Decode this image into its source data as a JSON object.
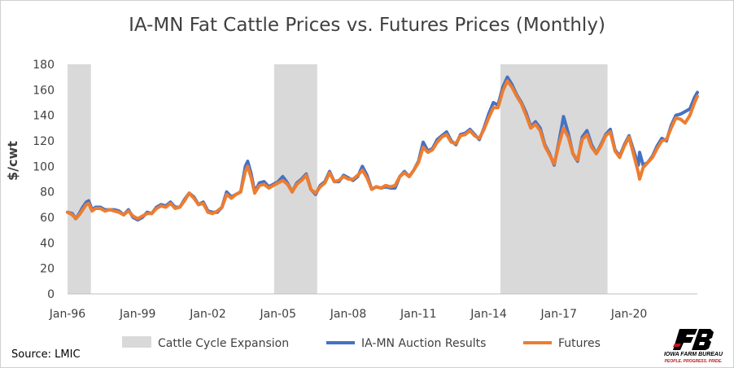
{
  "chart_data": {
    "type": "line",
    "title": "IA-MN Fat Cattle Prices vs. Futures Prices (Monthly)",
    "ylabel": "$/cwt",
    "xlabel": "",
    "ylim": [
      0,
      180
    ],
    "yticks": [
      0,
      20,
      40,
      60,
      80,
      100,
      120,
      140,
      160,
      180
    ],
    "xlim": [
      1996.0,
      2022.92
    ],
    "xticks": [
      {
        "x": 1996,
        "label": "Jan-96"
      },
      {
        "x": 1999,
        "label": "Jan-99"
      },
      {
        "x": 2002,
        "label": "Jan-02"
      },
      {
        "x": 2005,
        "label": "Jan-05"
      },
      {
        "x": 2008,
        "label": "Jan-08"
      },
      {
        "x": 2011,
        "label": "Jan-11"
      },
      {
        "x": 2014,
        "label": "Jan-14"
      },
      {
        "x": 2017,
        "label": "Jan-17"
      },
      {
        "x": 2020,
        "label": "Jan-20"
      }
    ],
    "grid": false,
    "legend_position": "bottom",
    "shaded_regions": [
      {
        "start": 1996.0,
        "end": 1997.0
      },
      {
        "start": 2004.83,
        "end": 2006.67
      },
      {
        "start": 2014.5,
        "end": 2019.08
      }
    ],
    "shade_name": "Cattle Cycle Expansion",
    "series": [
      {
        "name": "IA-MN Auction Results",
        "color": "#4472c4",
        "points": [
          [
            1996.0,
            64
          ],
          [
            1996.2,
            63
          ],
          [
            1996.35,
            59
          ],
          [
            1996.5,
            63
          ],
          [
            1996.65,
            68
          ],
          [
            1996.8,
            72
          ],
          [
            1996.9,
            73
          ],
          [
            1997.05,
            66
          ],
          [
            1997.2,
            68
          ],
          [
            1997.4,
            68
          ],
          [
            1997.6,
            66
          ],
          [
            1997.8,
            66
          ],
          [
            1998.0,
            66
          ],
          [
            1998.2,
            65
          ],
          [
            1998.4,
            62
          ],
          [
            1998.6,
            66
          ],
          [
            1998.8,
            60
          ],
          [
            1999.0,
            58
          ],
          [
            1999.2,
            60
          ],
          [
            1999.4,
            64
          ],
          [
            1999.6,
            63
          ],
          [
            1999.8,
            68
          ],
          [
            2000.0,
            70
          ],
          [
            2000.2,
            69
          ],
          [
            2000.4,
            72
          ],
          [
            2000.6,
            68
          ],
          [
            2000.8,
            68
          ],
          [
            2001.0,
            74
          ],
          [
            2001.2,
            79
          ],
          [
            2001.4,
            76
          ],
          [
            2001.6,
            70
          ],
          [
            2001.8,
            72
          ],
          [
            2002.0,
            65
          ],
          [
            2002.2,
            64
          ],
          [
            2002.4,
            64
          ],
          [
            2002.6,
            68
          ],
          [
            2002.8,
            80
          ],
          [
            2003.0,
            76
          ],
          [
            2003.2,
            78
          ],
          [
            2003.4,
            80
          ],
          [
            2003.6,
            100
          ],
          [
            2003.7,
            104
          ],
          [
            2003.85,
            94
          ],
          [
            2004.0,
            80
          ],
          [
            2004.2,
            87
          ],
          [
            2004.4,
            88
          ],
          [
            2004.6,
            84
          ],
          [
            2004.8,
            86
          ],
          [
            2005.0,
            88
          ],
          [
            2005.2,
            92
          ],
          [
            2005.4,
            87
          ],
          [
            2005.6,
            80
          ],
          [
            2005.8,
            87
          ],
          [
            2006.0,
            90
          ],
          [
            2006.2,
            94
          ],
          [
            2006.4,
            82
          ],
          [
            2006.6,
            78
          ],
          [
            2006.8,
            85
          ],
          [
            2007.0,
            88
          ],
          [
            2007.2,
            96
          ],
          [
            2007.4,
            88
          ],
          [
            2007.6,
            88
          ],
          [
            2007.8,
            93
          ],
          [
            2008.0,
            91
          ],
          [
            2008.2,
            89
          ],
          [
            2008.4,
            92
          ],
          [
            2008.6,
            100
          ],
          [
            2008.8,
            93
          ],
          [
            2009.0,
            82
          ],
          [
            2009.2,
            84
          ],
          [
            2009.4,
            83
          ],
          [
            2009.6,
            84
          ],
          [
            2009.8,
            83
          ],
          [
            2010.0,
            83
          ],
          [
            2010.2,
            92
          ],
          [
            2010.4,
            96
          ],
          [
            2010.6,
            92
          ],
          [
            2010.8,
            97
          ],
          [
            2011.0,
            104
          ],
          [
            2011.2,
            119
          ],
          [
            2011.4,
            112
          ],
          [
            2011.6,
            114
          ],
          [
            2011.8,
            121
          ],
          [
            2012.0,
            124
          ],
          [
            2012.2,
            127
          ],
          [
            2012.4,
            120
          ],
          [
            2012.6,
            117
          ],
          [
            2012.8,
            125
          ],
          [
            2013.0,
            126
          ],
          [
            2013.2,
            129
          ],
          [
            2013.4,
            125
          ],
          [
            2013.6,
            121
          ],
          [
            2013.8,
            130
          ],
          [
            2014.0,
            141
          ],
          [
            2014.2,
            150
          ],
          [
            2014.4,
            148
          ],
          [
            2014.6,
            162
          ],
          [
            2014.8,
            170
          ],
          [
            2015.0,
            164
          ],
          [
            2015.2,
            156
          ],
          [
            2015.4,
            150
          ],
          [
            2015.6,
            142
          ],
          [
            2015.8,
            131
          ],
          [
            2016.0,
            135
          ],
          [
            2016.2,
            130
          ],
          [
            2016.4,
            117
          ],
          [
            2016.6,
            110
          ],
          [
            2016.8,
            101
          ],
          [
            2017.0,
            119
          ],
          [
            2017.2,
            139
          ],
          [
            2017.4,
            126
          ],
          [
            2017.6,
            110
          ],
          [
            2017.8,
            104
          ],
          [
            2018.0,
            123
          ],
          [
            2018.2,
            128
          ],
          [
            2018.4,
            117
          ],
          [
            2018.6,
            110
          ],
          [
            2018.8,
            117
          ],
          [
            2019.0,
            125
          ],
          [
            2019.2,
            129
          ],
          [
            2019.4,
            113
          ],
          [
            2019.6,
            108
          ],
          [
            2019.8,
            117
          ],
          [
            2020.0,
            124
          ],
          [
            2020.2,
            112
          ],
          [
            2020.4,
            101
          ],
          [
            2020.45,
            111
          ],
          [
            2020.6,
            101
          ],
          [
            2020.8,
            103
          ],
          [
            2021.0,
            108
          ],
          [
            2021.2,
            116
          ],
          [
            2021.4,
            122
          ],
          [
            2021.6,
            120
          ],
          [
            2021.8,
            132
          ],
          [
            2022.0,
            140
          ],
          [
            2022.2,
            141
          ],
          [
            2022.4,
            143
          ],
          [
            2022.6,
            145
          ],
          [
            2022.8,
            154
          ],
          [
            2022.92,
            158
          ]
        ]
      },
      {
        "name": "Futures",
        "color": "#ed7d31",
        "points": [
          [
            1996.0,
            64
          ],
          [
            1996.2,
            62
          ],
          [
            1996.35,
            59
          ],
          [
            1996.5,
            62
          ],
          [
            1996.65,
            66
          ],
          [
            1996.8,
            70
          ],
          [
            1996.9,
            71
          ],
          [
            1997.05,
            65
          ],
          [
            1997.2,
            67
          ],
          [
            1997.4,
            67
          ],
          [
            1997.6,
            65
          ],
          [
            1997.8,
            66
          ],
          [
            1998.0,
            65
          ],
          [
            1998.2,
            64
          ],
          [
            1998.4,
            62
          ],
          [
            1998.6,
            65
          ],
          [
            1998.8,
            61
          ],
          [
            1999.0,
            59
          ],
          [
            1999.2,
            61
          ],
          [
            1999.4,
            63
          ],
          [
            1999.6,
            63
          ],
          [
            1999.8,
            67
          ],
          [
            2000.0,
            69
          ],
          [
            2000.2,
            68
          ],
          [
            2000.4,
            71
          ],
          [
            2000.6,
            67
          ],
          [
            2000.8,
            68
          ],
          [
            2001.0,
            73
          ],
          [
            2001.2,
            79
          ],
          [
            2001.4,
            75
          ],
          [
            2001.6,
            70
          ],
          [
            2001.8,
            71
          ],
          [
            2002.0,
            64
          ],
          [
            2002.2,
            63
          ],
          [
            2002.4,
            65
          ],
          [
            2002.6,
            68
          ],
          [
            2002.8,
            78
          ],
          [
            2003.0,
            75
          ],
          [
            2003.2,
            78
          ],
          [
            2003.4,
            80
          ],
          [
            2003.6,
            96
          ],
          [
            2003.7,
            100
          ],
          [
            2003.85,
            91
          ],
          [
            2004.0,
            79
          ],
          [
            2004.2,
            85
          ],
          [
            2004.4,
            86
          ],
          [
            2004.6,
            83
          ],
          [
            2004.8,
            85
          ],
          [
            2005.0,
            87
          ],
          [
            2005.2,
            89
          ],
          [
            2005.4,
            86
          ],
          [
            2005.6,
            80
          ],
          [
            2005.8,
            86
          ],
          [
            2006.0,
            89
          ],
          [
            2006.2,
            93
          ],
          [
            2006.4,
            82
          ],
          [
            2006.6,
            79
          ],
          [
            2006.8,
            84
          ],
          [
            2007.0,
            87
          ],
          [
            2007.2,
            95
          ],
          [
            2007.4,
            88
          ],
          [
            2007.6,
            89
          ],
          [
            2007.8,
            92
          ],
          [
            2008.0,
            90
          ],
          [
            2008.2,
            90
          ],
          [
            2008.4,
            93
          ],
          [
            2008.6,
            97
          ],
          [
            2008.8,
            91
          ],
          [
            2009.0,
            82
          ],
          [
            2009.2,
            84
          ],
          [
            2009.4,
            83
          ],
          [
            2009.6,
            85
          ],
          [
            2009.8,
            84
          ],
          [
            2010.0,
            85
          ],
          [
            2010.2,
            92
          ],
          [
            2010.4,
            95
          ],
          [
            2010.6,
            92
          ],
          [
            2010.8,
            97
          ],
          [
            2011.0,
            103
          ],
          [
            2011.2,
            115
          ],
          [
            2011.4,
            111
          ],
          [
            2011.6,
            113
          ],
          [
            2011.8,
            119
          ],
          [
            2012.0,
            123
          ],
          [
            2012.2,
            125
          ],
          [
            2012.4,
            119
          ],
          [
            2012.6,
            118
          ],
          [
            2012.8,
            124
          ],
          [
            2013.0,
            125
          ],
          [
            2013.2,
            128
          ],
          [
            2013.4,
            124
          ],
          [
            2013.6,
            122
          ],
          [
            2013.8,
            129
          ],
          [
            2014.0,
            138
          ],
          [
            2014.2,
            146
          ],
          [
            2014.4,
            146
          ],
          [
            2014.6,
            159
          ],
          [
            2014.8,
            167
          ],
          [
            2015.0,
            162
          ],
          [
            2015.2,
            155
          ],
          [
            2015.4,
            149
          ],
          [
            2015.6,
            140
          ],
          [
            2015.8,
            130
          ],
          [
            2016.0,
            133
          ],
          [
            2016.2,
            128
          ],
          [
            2016.4,
            116
          ],
          [
            2016.6,
            109
          ],
          [
            2016.8,
            102
          ],
          [
            2017.0,
            117
          ],
          [
            2017.2,
            130
          ],
          [
            2017.4,
            123
          ],
          [
            2017.6,
            110
          ],
          [
            2017.8,
            105
          ],
          [
            2018.0,
            121
          ],
          [
            2018.2,
            125
          ],
          [
            2018.4,
            115
          ],
          [
            2018.6,
            110
          ],
          [
            2018.8,
            116
          ],
          [
            2019.0,
            124
          ],
          [
            2019.2,
            127
          ],
          [
            2019.4,
            112
          ],
          [
            2019.6,
            107
          ],
          [
            2019.8,
            116
          ],
          [
            2020.0,
            123
          ],
          [
            2020.2,
            109
          ],
          [
            2020.4,
            95
          ],
          [
            2020.45,
            90
          ],
          [
            2020.6,
            99
          ],
          [
            2020.8,
            103
          ],
          [
            2021.0,
            107
          ],
          [
            2021.2,
            114
          ],
          [
            2021.4,
            120
          ],
          [
            2021.6,
            121
          ],
          [
            2021.8,
            130
          ],
          [
            2022.0,
            138
          ],
          [
            2022.2,
            137
          ],
          [
            2022.4,
            134
          ],
          [
            2022.6,
            140
          ],
          [
            2022.8,
            150
          ],
          [
            2022.92,
            155
          ]
        ]
      }
    ]
  },
  "source_text": "Source: LMIC",
  "logo": {
    "brand": "IOWA FARM BUREAU",
    "tagline": "PEOPLE. PROGRESS. PRIDE.",
    "accent": "#c0181b"
  }
}
